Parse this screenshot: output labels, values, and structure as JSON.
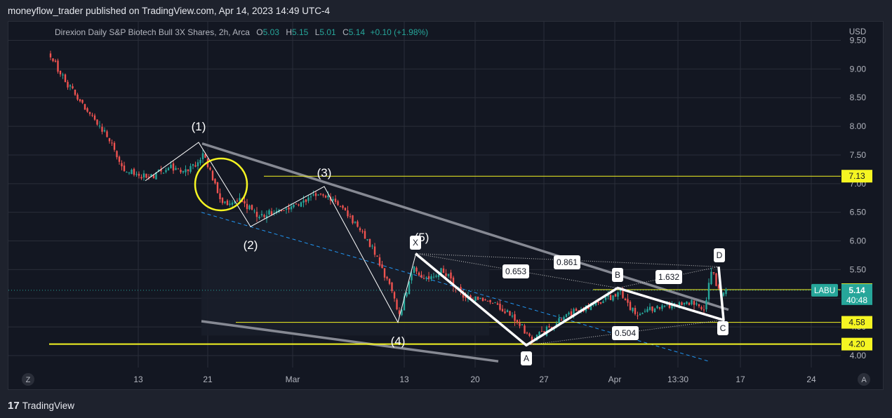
{
  "header": {
    "published_text": "moneyflow_trader published on TradingView.com, Apr 14, 2023 14:49 UTC-4"
  },
  "legend": {
    "symbol": "Direxion Daily S&P Biotech Bull 3X Shares, 2h, Arca",
    "o_label": "O",
    "o_value": "5.03",
    "h_label": "H",
    "h_value": "5.15",
    "l_label": "L",
    "l_value": "5.01",
    "c_label": "C",
    "c_value": "5.14",
    "change": "+0.10 (+1.98%)"
  },
  "footer": {
    "brand": "TradingView"
  },
  "colors": {
    "background": "#131722",
    "up": "#26a69a",
    "down": "#ef5350",
    "yellow": "#f5f522",
    "grid": "#2a2e39",
    "axis_text": "#b2b5be",
    "current_price_tag": "#26a69a"
  },
  "chart_data": {
    "type": "candlestick",
    "currency_label": "USD",
    "ylim": [
      3.85,
      9.55
    ],
    "y_ticks": [
      "4.00",
      "4.50",
      "5.00",
      "5.50",
      "6.00",
      "6.50",
      "7.00",
      "7.50",
      "8.00",
      "8.50",
      "9.00",
      "9.50"
    ],
    "x_ticks": [
      "13",
      "21",
      "Mar",
      "13",
      "20",
      "27",
      "Apr",
      "13:30",
      "17",
      "24"
    ],
    "axis_buttons": {
      "left": "Z",
      "right": "A"
    },
    "price_tags": [
      {
        "label": "7.13",
        "price": 7.13
      },
      {
        "label": "5.15",
        "price": 5.15
      },
      {
        "label": "4.58",
        "price": 4.58
      },
      {
        "label": "4.20",
        "price": 4.2
      }
    ],
    "current_price": {
      "symbol": "LABU",
      "price_label": "5.14",
      "price": 5.14,
      "countdown": "40:48"
    },
    "horizontal_levels": [
      7.13,
      5.15,
      4.58,
      4.2
    ],
    "wave_labels": [
      "(1)",
      "(2)",
      "(3)",
      "(4)",
      "(5)"
    ],
    "harmonic_points": [
      "X",
      "A",
      "B",
      "C",
      "D"
    ],
    "harmonic_ratios": [
      "0.861",
      "0.653",
      "1.632",
      "0.504"
    ],
    "path_prices": [
      {
        "bar": 0,
        "price": 9.2
      },
      {
        "bar": 6,
        "price": 8.8
      },
      {
        "bar": 14,
        "price": 8.3
      },
      {
        "bar": 22,
        "price": 7.9
      },
      {
        "bar": 30,
        "price": 7.25
      },
      {
        "bar": 40,
        "price": 7.1
      },
      {
        "bar": 48,
        "price": 7.3
      },
      {
        "bar": 56,
        "price": 7.2
      },
      {
        "bar": 62,
        "price": 7.5
      },
      {
        "bar": 64,
        "price": 7.3
      },
      {
        "bar": 70,
        "price": 6.65
      },
      {
        "bar": 78,
        "price": 6.7
      },
      {
        "bar": 85,
        "price": 6.4
      },
      {
        "bar": 93,
        "price": 6.55
      },
      {
        "bar": 100,
        "price": 6.6
      },
      {
        "bar": 110,
        "price": 6.85
      },
      {
        "bar": 116,
        "price": 6.7
      },
      {
        "bar": 124,
        "price": 6.3
      },
      {
        "bar": 130,
        "price": 5.95
      },
      {
        "bar": 138,
        "price": 5.2
      },
      {
        "bar": 142,
        "price": 4.7
      },
      {
        "bar": 148,
        "price": 5.6
      },
      {
        "bar": 152,
        "price": 5.3
      },
      {
        "bar": 160,
        "price": 5.5
      },
      {
        "bar": 168,
        "price": 5.0
      },
      {
        "bar": 178,
        "price": 5.0
      },
      {
        "bar": 188,
        "price": 4.7
      },
      {
        "bar": 196,
        "price": 4.28
      },
      {
        "bar": 204,
        "price": 4.5
      },
      {
        "bar": 212,
        "price": 4.75
      },
      {
        "bar": 222,
        "price": 4.9
      },
      {
        "bar": 232,
        "price": 5.1
      },
      {
        "bar": 238,
        "price": 4.72
      },
      {
        "bar": 246,
        "price": 4.85
      },
      {
        "bar": 256,
        "price": 4.88
      },
      {
        "bar": 263,
        "price": 4.95
      },
      {
        "bar": 266,
        "price": 4.75
      },
      {
        "bar": 269,
        "price": 5.5
      },
      {
        "bar": 273,
        "price": 5.05
      },
      {
        "bar": 275,
        "price": 5.14
      }
    ]
  }
}
